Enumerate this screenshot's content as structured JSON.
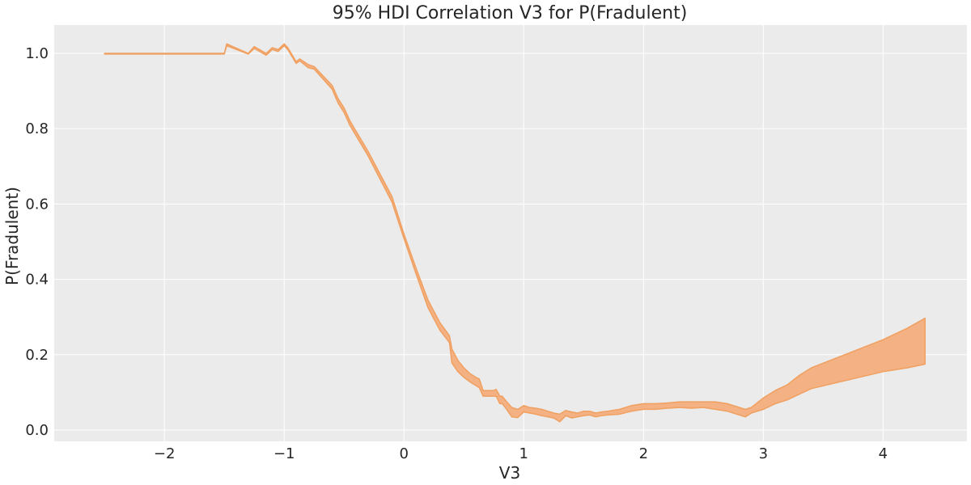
{
  "chart_data": {
    "type": "area",
    "title": "95% HDI Correlation V3 for P(Fradulent)",
    "xlabel": "V3",
    "ylabel": "P(Fradulent)",
    "xlim": [
      -2.92,
      4.7
    ],
    "ylim": [
      -0.03,
      1.075
    ],
    "grid": true,
    "background": "#ebebeb",
    "grid_color": "#ffffff",
    "band_color": "#f4b183",
    "band_edge_color": "#f0a060",
    "x_ticks": [
      -2,
      -1,
      0,
      1,
      2,
      3,
      4
    ],
    "x_tick_labels": [
      "−2",
      "−1",
      "0",
      "1",
      "2",
      "3",
      "4"
    ],
    "y_ticks": [
      0.0,
      0.2,
      0.4,
      0.6,
      0.8,
      1.0
    ],
    "y_tick_labels": [
      "0.0",
      "0.2",
      "0.4",
      "0.6",
      "0.8",
      "1.0"
    ],
    "series": [
      {
        "x": [
          -2.5,
          -1.5,
          -1.48,
          -1.3,
          -1.25,
          -1.15,
          -1.1,
          -1.05,
          -1.0,
          -0.97,
          -0.9,
          -0.87,
          -0.8,
          -0.75,
          -0.6,
          -0.55,
          -0.5,
          -0.45,
          -0.3,
          -0.1,
          0.0,
          0.1,
          0.2,
          0.3,
          0.38,
          0.4,
          0.45,
          0.5,
          0.55,
          0.6,
          0.63,
          0.66,
          0.7,
          0.75,
          0.77,
          0.8,
          0.82,
          0.85,
          0.9,
          0.95,
          1.0,
          1.05,
          1.1,
          1.15,
          1.2,
          1.25,
          1.3,
          1.35,
          1.4,
          1.45,
          1.5,
          1.55,
          1.6,
          1.65,
          1.7,
          1.8,
          1.9,
          2.0,
          2.1,
          2.2,
          2.3,
          2.4,
          2.5,
          2.6,
          2.7,
          2.8,
          2.85,
          2.9,
          3.0,
          3.1,
          3.2,
          3.3,
          3.4,
          3.6,
          3.8,
          4.0,
          4.2,
          4.35
        ],
        "upper": [
          1.0,
          1.0,
          1.025,
          1.0,
          1.018,
          1.0,
          1.015,
          1.01,
          1.025,
          1.015,
          0.978,
          0.985,
          0.97,
          0.965,
          0.915,
          0.88,
          0.855,
          0.82,
          0.74,
          0.62,
          0.52,
          0.43,
          0.345,
          0.285,
          0.25,
          0.215,
          0.185,
          0.165,
          0.15,
          0.14,
          0.135,
          0.105,
          0.105,
          0.105,
          0.108,
          0.09,
          0.09,
          0.078,
          0.06,
          0.055,
          0.065,
          0.06,
          0.058,
          0.055,
          0.05,
          0.045,
          0.042,
          0.052,
          0.048,
          0.045,
          0.05,
          0.05,
          0.045,
          0.048,
          0.05,
          0.055,
          0.065,
          0.07,
          0.07,
          0.072,
          0.075,
          0.075,
          0.075,
          0.075,
          0.07,
          0.06,
          0.055,
          0.06,
          0.085,
          0.105,
          0.12,
          0.145,
          0.165,
          0.19,
          0.215,
          0.24,
          0.27,
          0.297
        ],
        "lower": [
          0.998,
          0.998,
          1.02,
          0.998,
          1.013,
          0.995,
          1.01,
          1.005,
          1.02,
          1.01,
          0.973,
          0.98,
          0.962,
          0.958,
          0.905,
          0.868,
          0.843,
          0.808,
          0.728,
          0.605,
          0.508,
          0.415,
          0.325,
          0.265,
          0.232,
          0.178,
          0.155,
          0.14,
          0.128,
          0.118,
          0.112,
          0.09,
          0.09,
          0.09,
          0.09,
          0.07,
          0.07,
          0.058,
          0.035,
          0.033,
          0.048,
          0.045,
          0.042,
          0.038,
          0.035,
          0.032,
          0.022,
          0.038,
          0.032,
          0.035,
          0.038,
          0.04,
          0.035,
          0.038,
          0.04,
          0.042,
          0.05,
          0.055,
          0.055,
          0.058,
          0.06,
          0.058,
          0.06,
          0.055,
          0.05,
          0.04,
          0.035,
          0.045,
          0.055,
          0.07,
          0.08,
          0.095,
          0.11,
          0.125,
          0.14,
          0.155,
          0.165,
          0.175
        ]
      }
    ]
  }
}
